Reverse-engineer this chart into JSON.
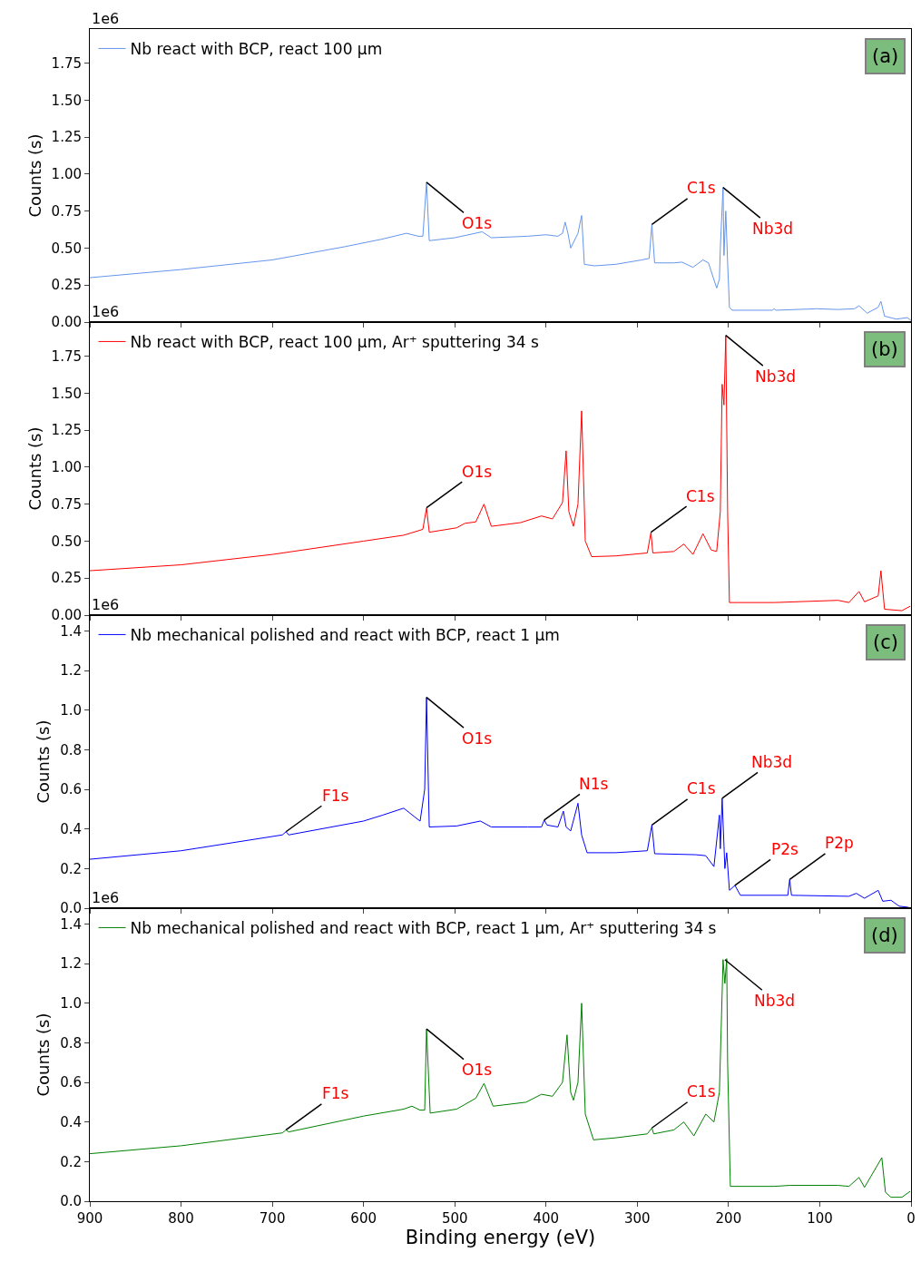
{
  "chart_data": [
    {
      "type": "line",
      "ylabel": "Counts (s)",
      "xlim": [
        900,
        0
      ],
      "xticks": [
        900,
        800,
        700,
        600,
        500,
        400,
        300,
        200,
        100,
        0
      ],
      "ylim": [
        0,
        1.98
      ],
      "yticks": [
        {
          "value": 0,
          "label": "0.00"
        },
        {
          "value": 0.25,
          "label": "0.25"
        },
        {
          "value": 0.5,
          "label": "0.50"
        },
        {
          "value": 0.75,
          "label": "0.75"
        },
        {
          "value": 1.0,
          "label": "1.00"
        },
        {
          "value": 1.25,
          "label": "1.25"
        },
        {
          "value": 1.5,
          "label": "1.50"
        },
        {
          "value": 1.75,
          "label": "1.75"
        }
      ],
      "tick_labels": "y",
      "legend": "top left",
      "series": [
        {
          "name": "Nb react with BCP, react 100 μm",
          "color": "#6495ed",
          "x": [
            900,
            800,
            700,
            620,
            580,
            553,
            540,
            535,
            531,
            528,
            500,
            470,
            460,
            420,
            400,
            387,
            382,
            379,
            376,
            373,
            365,
            361,
            358,
            347,
            324,
            295,
            287,
            284,
            281,
            260,
            251,
            239,
            228,
            222,
            213,
            210,
            209,
            206,
            205,
            203,
            201,
            199,
            196,
            152,
            150,
            148,
            103,
            80,
            62,
            57,
            48,
            36,
            33,
            29,
            16,
            4,
            0
          ],
          "values": [
            0.3,
            0.355,
            0.42,
            0.51,
            0.56,
            0.6,
            0.58,
            0.58,
            0.945,
            0.55,
            0.57,
            0.61,
            0.57,
            0.58,
            0.59,
            0.58,
            0.6,
            0.675,
            0.6,
            0.5,
            0.6,
            0.72,
            0.39,
            0.38,
            0.39,
            0.42,
            0.43,
            0.66,
            0.4,
            0.4,
            0.405,
            0.37,
            0.42,
            0.4,
            0.23,
            0.29,
            0.5,
            0.91,
            0.45,
            0.75,
            0.4,
            0.1,
            0.08,
            0.08,
            0.09,
            0.08,
            0.09,
            0.085,
            0.09,
            0.11,
            0.06,
            0.1,
            0.14,
            0.04,
            0.02,
            0.03,
            0.01
          ]
        }
      ],
      "annotations": [
        "(a)",
        "1e6",
        {
          "text": "O1s",
          "x": 531,
          "y": 0.945
        },
        {
          "text": "C1s",
          "x": 284,
          "y": 0.66
        },
        {
          "text": "Nb3d",
          "x": 206,
          "y": 0.91
        }
      ]
    },
    {
      "type": "line",
      "ylabel": "Counts (s)",
      "xlim": [
        900,
        0
      ],
      "xticks": [
        900,
        800,
        700,
        600,
        500,
        400,
        300,
        200,
        100,
        0
      ],
      "ylim": [
        0,
        1.98
      ],
      "yticks": [
        {
          "value": 0,
          "label": "0.00"
        },
        {
          "value": 0.25,
          "label": "0.25"
        },
        {
          "value": 0.5,
          "label": "0.50"
        },
        {
          "value": 0.75,
          "label": "0.75"
        },
        {
          "value": 1.0,
          "label": "1.00"
        },
        {
          "value": 1.25,
          "label": "1.25"
        },
        {
          "value": 1.5,
          "label": "1.50"
        },
        {
          "value": 1.75,
          "label": "1.75"
        }
      ],
      "tick_labels": "y",
      "legend": "top left",
      "series": [
        {
          "name": "Nb react with BCP, react 100 μm, Ar⁺ sputtering 34 s",
          "color": "#ff0000",
          "x": [
            900,
            800,
            700,
            600,
            556,
            540,
            535,
            531,
            528,
            498,
            489,
            477,
            468,
            460,
            428,
            405,
            393,
            382,
            378,
            375,
            370,
            365,
            361,
            357,
            350,
            324,
            289,
            285,
            283,
            260,
            249,
            239,
            228,
            219,
            213,
            209,
            207,
            205,
            203,
            201,
            199,
            150,
            80,
            68,
            57,
            51,
            36,
            33,
            29,
            10,
            1
          ],
          "values": [
            0.3,
            0.34,
            0.41,
            0.5,
            0.54,
            0.57,
            0.58,
            0.725,
            0.56,
            0.59,
            0.62,
            0.63,
            0.75,
            0.6,
            0.625,
            0.67,
            0.65,
            0.76,
            1.11,
            0.7,
            0.6,
            0.75,
            1.38,
            0.5,
            0.395,
            0.4,
            0.42,
            0.56,
            0.42,
            0.43,
            0.48,
            0.41,
            0.55,
            0.44,
            0.43,
            0.7,
            1.56,
            1.42,
            1.89,
            0.7,
            0.085,
            0.085,
            0.1,
            0.085,
            0.16,
            0.09,
            0.13,
            0.3,
            0.04,
            0.03,
            0.06
          ]
        }
      ],
      "annotations": [
        "(b)",
        "1e6",
        {
          "text": "O1s",
          "x": 531,
          "y": 0.725
        },
        {
          "text": "C1s",
          "x": 285,
          "y": 0.56
        },
        {
          "text": "Nb3d",
          "x": 203,
          "y": 1.89
        }
      ]
    },
    {
      "type": "line",
      "ylabel": "Counts (s)",
      "xlim": [
        900,
        0
      ],
      "xticks": [
        900,
        800,
        700,
        600,
        500,
        400,
        300,
        200,
        100,
        0
      ],
      "ylim": [
        0,
        1.48
      ],
      "yticks": [
        {
          "value": 0,
          "label": "0.0"
        },
        {
          "value": 0.2,
          "label": "0.2"
        },
        {
          "value": 0.4,
          "label": "0.4"
        },
        {
          "value": 0.6,
          "label": "0.6"
        },
        {
          "value": 0.8,
          "label": "0.8"
        },
        {
          "value": 1.0,
          "label": "1.0"
        },
        {
          "value": 1.2,
          "label": "1.2"
        },
        {
          "value": 1.4,
          "label": "1.4"
        }
      ],
      "tick_labels": "y",
      "legend": "top left",
      "series": [
        {
          "name": "Nb mechanical polished and react with BCP, react 1 μm",
          "color": "#0000ff",
          "x": [
            900,
            800,
            689,
            685,
            682,
            600,
            579,
            556,
            541,
            538,
            533,
            531,
            528,
            498,
            472,
            460,
            420,
            405,
            402,
            399,
            387,
            381,
            378,
            373,
            365,
            361,
            355,
            324,
            289,
            284,
            281,
            236,
            225,
            216,
            210,
            209,
            207,
            204,
            202,
            199,
            193,
            187,
            135,
            133,
            131,
            68,
            60,
            51,
            36,
            31,
            22,
            13,
            4,
            0
          ],
          "values": [
            0.247,
            0.29,
            0.37,
            0.386,
            0.37,
            0.44,
            0.47,
            0.505,
            0.45,
            0.44,
            0.6,
            1.065,
            0.41,
            0.415,
            0.44,
            0.41,
            0.41,
            0.41,
            0.445,
            0.42,
            0.41,
            0.49,
            0.41,
            0.39,
            0.53,
            0.37,
            0.28,
            0.28,
            0.29,
            0.42,
            0.275,
            0.27,
            0.265,
            0.21,
            0.47,
            0.3,
            0.555,
            0.2,
            0.28,
            0.09,
            0.115,
            0.065,
            0.065,
            0.145,
            0.065,
            0.06,
            0.075,
            0.05,
            0.09,
            0.035,
            0.04,
            0.01,
            0.005,
            0
          ]
        }
      ],
      "annotations": [
        "(c)",
        "1e6",
        {
          "text": "F1s",
          "x": 685,
          "y": 0.386
        },
        {
          "text": "O1s",
          "x": 531,
          "y": 1.065
        },
        {
          "text": "N1s",
          "x": 402,
          "y": 0.445
        },
        {
          "text": "C1s",
          "x": 284,
          "y": 0.42
        },
        {
          "text": "Nb3d",
          "x": 207,
          "y": 0.555
        },
        {
          "text": "P2s",
          "x": 193,
          "y": 0.115
        },
        {
          "text": "P2p",
          "x": 133,
          "y": 0.145
        }
      ]
    },
    {
      "type": "line",
      "ylabel": "Counts (s)",
      "xlabel": "Binding energy (eV)",
      "xlim": [
        900,
        0
      ],
      "xticks": [
        900,
        800,
        700,
        600,
        500,
        400,
        300,
        200,
        100,
        0
      ],
      "ylim": [
        0,
        1.48
      ],
      "yticks": [
        {
          "value": 0,
          "label": "0.0"
        },
        {
          "value": 0.2,
          "label": "0.2"
        },
        {
          "value": 0.4,
          "label": "0.4"
        },
        {
          "value": 0.6,
          "label": "0.6"
        },
        {
          "value": 0.8,
          "label": "0.8"
        },
        {
          "value": 1.0,
          "label": "1.0"
        },
        {
          "value": 1.2,
          "label": "1.2"
        },
        {
          "value": 1.4,
          "label": "1.4"
        }
      ],
      "legend": "top left",
      "series": [
        {
          "name": "Nb mechanical polished and react with BCP, react 1 μm, Ar⁺ sputtering 34 s",
          "color": "#008000",
          "x": [
            900,
            800,
            689,
            685,
            682,
            600,
            556,
            547,
            538,
            533,
            531,
            527,
            498,
            477,
            468,
            458,
            422,
            405,
            393,
            382,
            377,
            373,
            370,
            365,
            361,
            357,
            348,
            324,
            289,
            284,
            282,
            260,
            249,
            238,
            225,
            216,
            210,
            206,
            204,
            202,
            201,
            198,
            150,
            133,
            80,
            68,
            57,
            51,
            32,
            28,
            22,
            10,
            1
          ],
          "values": [
            0.24,
            0.28,
            0.345,
            0.36,
            0.35,
            0.43,
            0.465,
            0.48,
            0.46,
            0.46,
            0.87,
            0.445,
            0.465,
            0.52,
            0.595,
            0.48,
            0.5,
            0.54,
            0.53,
            0.6,
            0.84,
            0.55,
            0.51,
            0.6,
            1.0,
            0.44,
            0.31,
            0.32,
            0.34,
            0.37,
            0.34,
            0.36,
            0.4,
            0.33,
            0.44,
            0.4,
            0.55,
            1.22,
            1.1,
            1.225,
            0.7,
            0.075,
            0.075,
            0.08,
            0.08,
            0.075,
            0.12,
            0.07,
            0.22,
            0.045,
            0.02,
            0.02,
            0.05
          ]
        }
      ],
      "annotations": [
        "(d)",
        "1e6",
        {
          "text": "F1s",
          "x": 685,
          "y": 0.36
        },
        {
          "text": "O1s",
          "x": 531,
          "y": 0.87
        },
        {
          "text": "C1s",
          "x": 284,
          "y": 0.37
        },
        {
          "text": "Nb3d",
          "x": 204,
          "y": 1.22
        }
      ]
    }
  ]
}
